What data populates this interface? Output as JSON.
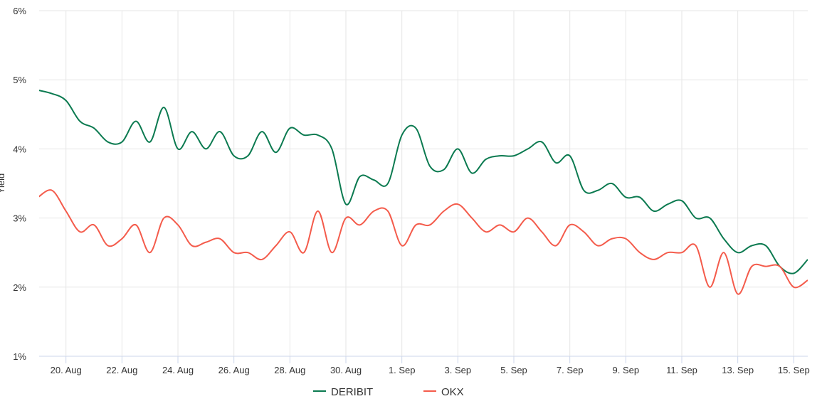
{
  "chart_data": {
    "type": "line",
    "title": "",
    "xlabel": "",
    "ylabel": "Yield",
    "ylim": [
      1,
      6
    ],
    "yticks": [
      "1%",
      "2%",
      "3%",
      "4%",
      "5%",
      "6%"
    ],
    "xlim": [
      "08-19 01:00",
      "09-15 12:00"
    ],
    "xticks": [
      {
        "date": "08-20",
        "label": "20. Aug"
      },
      {
        "date": "08-22",
        "label": "22. Aug"
      },
      {
        "date": "08-24",
        "label": "24. Aug"
      },
      {
        "date": "08-26",
        "label": "26. Aug"
      },
      {
        "date": "08-28",
        "label": "28. Aug"
      },
      {
        "date": "08-30",
        "label": "30. Aug"
      },
      {
        "date": "09-01",
        "label": "1. Sep"
      },
      {
        "date": "09-03",
        "label": "3. Sep"
      },
      {
        "date": "09-05",
        "label": "5. Sep"
      },
      {
        "date": "09-07",
        "label": "7. Sep"
      },
      {
        "date": "09-09",
        "label": "9. Sep"
      },
      {
        "date": "09-11",
        "label": "11. Sep"
      },
      {
        "date": "09-13",
        "label": "13. Sep"
      },
      {
        "date": "09-15",
        "label": "15. Sep"
      }
    ],
    "grid": true,
    "legend": "bottom-center",
    "x": [
      "08-19 00:00",
      "08-19 12:00",
      "08-20 00:00",
      "08-20 12:00",
      "08-21 00:00",
      "08-21 12:00",
      "08-22 00:00",
      "08-22 12:00",
      "08-23 00:00",
      "08-23 12:00",
      "08-24 00:00",
      "08-24 12:00",
      "08-25 00:00",
      "08-25 12:00",
      "08-26 00:00",
      "08-26 12:00",
      "08-27 00:00",
      "08-27 12:00",
      "08-28 00:00",
      "08-28 12:00",
      "08-29 00:00",
      "08-29 12:00",
      "08-30 00:00",
      "08-30 12:00",
      "08-31 00:00",
      "08-31 12:00",
      "09-01 00:00",
      "09-01 12:00",
      "09-02 00:00",
      "09-02 12:00",
      "09-03 00:00",
      "09-03 12:00",
      "09-04 00:00",
      "09-04 12:00",
      "09-05 00:00",
      "09-05 12:00",
      "09-06 00:00",
      "09-06 12:00",
      "09-07 00:00",
      "09-07 12:00",
      "09-08 00:00",
      "09-08 12:00",
      "09-09 00:00",
      "09-09 12:00",
      "09-10 00:00",
      "09-10 12:00",
      "09-11 00:00",
      "09-11 12:00",
      "09-12 00:00",
      "09-12 12:00",
      "09-13 00:00",
      "09-13 12:00",
      "09-14 00:00",
      "09-14 12:00",
      "09-15 00:00",
      "09-15 12:00"
    ],
    "series": [
      {
        "name": "DERIBIT",
        "color": "#0b7a50",
        "values": [
          4.85,
          4.8,
          4.7,
          4.4,
          4.3,
          4.1,
          4.1,
          4.4,
          4.1,
          4.6,
          4.0,
          4.25,
          4.0,
          4.25,
          3.9,
          3.9,
          4.25,
          3.95,
          4.3,
          4.2,
          4.2,
          4.0,
          3.2,
          3.6,
          3.55,
          3.5,
          4.2,
          4.3,
          3.75,
          3.7,
          4.0,
          3.65,
          3.85,
          3.9,
          3.9,
          4.0,
          4.1,
          3.8,
          3.9,
          3.4,
          3.4,
          3.5,
          3.3,
          3.3,
          3.1,
          3.2,
          3.25,
          3.0,
          3.0,
          2.7,
          2.5,
          2.6,
          2.6,
          2.3,
          2.2,
          2.4
        ]
      },
      {
        "name": "OKX",
        "color": "#f45b4b",
        "values": [
          3.3,
          3.4,
          3.1,
          2.8,
          2.9,
          2.6,
          2.7,
          2.9,
          2.5,
          3.0,
          2.9,
          2.6,
          2.65,
          2.7,
          2.5,
          2.5,
          2.4,
          2.6,
          2.8,
          2.5,
          3.1,
          2.5,
          3.0,
          2.9,
          3.1,
          3.1,
          2.6,
          2.9,
          2.9,
          3.1,
          3.2,
          3.0,
          2.8,
          2.9,
          2.8,
          3.0,
          2.8,
          2.6,
          2.9,
          2.8,
          2.6,
          2.7,
          2.7,
          2.5,
          2.4,
          2.5,
          2.5,
          2.6,
          2.0,
          2.5,
          1.9,
          2.3,
          2.3,
          2.3,
          2.0,
          2.1
        ]
      }
    ]
  }
}
